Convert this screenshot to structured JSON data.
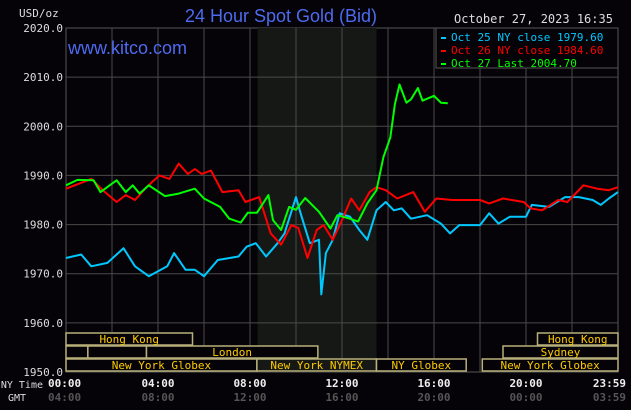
{
  "chart_data": {
    "type": "line",
    "title": "24 Hour Spot Gold (Bid)",
    "watermark": "www.kitco.com",
    "timestamp": "October 27, 2023 16:35",
    "ylabel": "USD/oz",
    "ylim": [
      1950,
      2020
    ],
    "yticks": [
      "2020.0",
      "2010.0",
      "2000.0",
      "1990.0",
      "1980.0",
      "1970.0",
      "1960.0",
      "1950.0"
    ],
    "ytick_values": [
      2020,
      2010,
      2000,
      1990,
      1980,
      1970,
      1960,
      1950
    ],
    "xlim": [
      0,
      24
    ],
    "x_row_labels": {
      "ny": "NY Time",
      "gmt": "GMT"
    },
    "xticks_ny": [
      "00:00",
      "04:00",
      "08:00",
      "12:00",
      "16:00",
      "20:00",
      "23:59"
    ],
    "xticks_gmt": [
      "04:00",
      "08:00",
      "12:00",
      "16:00",
      "20:00",
      "00:00",
      "03:59"
    ],
    "xtick_hours": [
      0,
      4,
      8,
      12,
      16,
      20,
      24
    ],
    "grid": true,
    "legend_position": "top-right",
    "shaded_session_hours": [
      8.33,
      13.5
    ],
    "series": [
      {
        "name": "Oct 25 NY close 1979.60",
        "color": "#00c8ff",
        "x": [
          0,
          0.66,
          1.1,
          1.8,
          2.5,
          3.0,
          3.6,
          4.4,
          4.7,
          5.2,
          5.6,
          6.0,
          6.6,
          7.5,
          7.85,
          8.25,
          8.7,
          9.2,
          9.5,
          10,
          10.2,
          10.6,
          11.0,
          11.1,
          11.3,
          11.6,
          11.9,
          12.35,
          12.75,
          13.1,
          13.5,
          13.9,
          14.25,
          14.6,
          15.0,
          15.7,
          16.3,
          16.7,
          17.1,
          18,
          18.4,
          18.8,
          19.3,
          20,
          20.25,
          21,
          21.7,
          22.3,
          22.9,
          23.25,
          23.6,
          24
        ],
        "y": [
          1973.2,
          1973.9,
          1971.5,
          1972.2,
          1975.2,
          1971.5,
          1969.5,
          1971.5,
          1974.2,
          1970.8,
          1970.8,
          1969.5,
          1972.8,
          1973.5,
          1975.5,
          1976.2,
          1973.5,
          1976.2,
          1978.2,
          1985.6,
          1982.3,
          1976.2,
          1976.9,
          1965.8,
          1974.2,
          1976.9,
          1982.3,
          1981.6,
          1978.9,
          1976.9,
          1982.9,
          1984.6,
          1982.9,
          1983.3,
          1981.2,
          1981.9,
          1980.2,
          1978.2,
          1979.9,
          1979.9,
          1982.3,
          1980.2,
          1981.6,
          1981.6,
          1984,
          1983.6,
          1985.6,
          1985.6,
          1985,
          1984,
          1985.3,
          1986.6
        ]
      },
      {
        "name": "Oct 26 NY close 1984.60",
        "color": "#ff0000",
        "x": [
          0,
          1.1,
          1.6,
          2.2,
          2.6,
          3.0,
          3.5,
          4.06,
          4.5,
          4.9,
          5.3,
          5.6,
          5.9,
          6.3,
          6.8,
          7.5,
          7.8,
          8.4,
          8.9,
          9.35,
          9.8,
          10.1,
          10.5,
          10.9,
          11.2,
          11.6,
          12.0,
          12.4,
          12.75,
          13.2,
          13.5,
          13.9,
          14.4,
          15.1,
          15.6,
          16.1,
          16.8,
          18.0,
          18.4,
          19.0,
          19.9,
          20.2,
          20.7,
          21.4,
          21.8,
          22.5,
          23.1,
          23.6,
          24
        ],
        "y": [
          1987.3,
          1989.3,
          1987,
          1984.6,
          1986,
          1985,
          1987.6,
          1990,
          1989.3,
          1992.4,
          1990.3,
          1991.3,
          1990.3,
          1991,
          1986.6,
          1987,
          1984.6,
          1985.6,
          1978.2,
          1975.9,
          1979.9,
          1979.3,
          1973.2,
          1978.9,
          1979.9,
          1976.9,
          1980.9,
          1985.3,
          1982.9,
          1986.6,
          1987.6,
          1987,
          1985.3,
          1986.6,
          1982.6,
          1985.3,
          1985,
          1985,
          1984.3,
          1985.3,
          1984.6,
          1983.3,
          1982.9,
          1985,
          1984.6,
          1988,
          1987.3,
          1987,
          1987.6
        ]
      },
      {
        "name": "Oct 27 Last 2004.70",
        "color": "#00ff00",
        "x": [
          0,
          0.5,
          1.2,
          1.5,
          2.2,
          2.6,
          2.9,
          3.2,
          3.6,
          4.3,
          4.9,
          5.6,
          6.0,
          6.7,
          7.1,
          7.6,
          7.9,
          8.3,
          8.8,
          9.0,
          9.35,
          9.7,
          10,
          10.4,
          11,
          11.5,
          11.8,
          12.35,
          12.7,
          13.1,
          13.5,
          13.8,
          14.1,
          14.3,
          14.5,
          14.8,
          15.0,
          15.3,
          15.5,
          16.0,
          16.3,
          16.6
        ],
        "y": [
          1988,
          1989.1,
          1989,
          1986.6,
          1989,
          1986.6,
          1988,
          1986.3,
          1988,
          1985.8,
          1986.3,
          1987.3,
          1985.3,
          1983.6,
          1981.2,
          1980.4,
          1982.4,
          1982.4,
          1986,
          1980.9,
          1978.9,
          1983.6,
          1983,
          1985.4,
          1982.6,
          1979.2,
          1981.9,
          1981.2,
          1980.6,
          1984.3,
          1987,
          1993.7,
          1997.7,
          2004.5,
          2008.5,
          2004.8,
          2005.5,
          2007.8,
          2005.2,
          2006.2,
          2004.8,
          2004.7
        ]
      }
    ],
    "sessions": [
      {
        "label": "Hong Kong",
        "row": 0,
        "start": 0,
        "end": 5.5
      },
      {
        "label": "Hong Kong",
        "row": 0,
        "start": 20.5,
        "end": 24
      },
      {
        "label": "",
        "row": 1,
        "start": 0,
        "end": 0.95
      },
      {
        "label": "",
        "row": 1,
        "start": 0.95,
        "end": 3.5
      },
      {
        "label": "London",
        "row": 1,
        "start": 3.5,
        "end": 10.95
      },
      {
        "label": "Sydney",
        "row": 1,
        "start": 19.0,
        "end": 24
      },
      {
        "label": "New York Globex",
        "row": 2,
        "start": 0,
        "end": 8.3
      },
      {
        "label": "New York NYMEX",
        "row": 2,
        "start": 8.3,
        "end": 13.5
      },
      {
        "label": "NY Globex",
        "row": 2,
        "start": 13.5,
        "end": 17.4
      },
      {
        "label": "New York Globex",
        "row": 2,
        "start": 18.1,
        "end": 24
      }
    ]
  }
}
